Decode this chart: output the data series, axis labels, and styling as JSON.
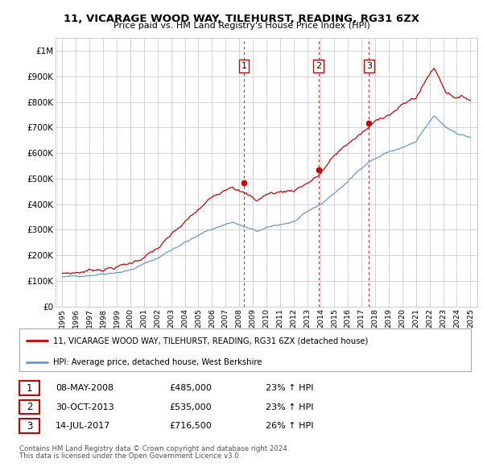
{
  "title": "11, VICARAGE WOOD WAY, TILEHURST, READING, RG31 6ZX",
  "subtitle": "Price paid vs. HM Land Registry's House Price Index (HPI)",
  "red_label": "11, VICARAGE WOOD WAY, TILEHURST, READING, RG31 6ZX (detached house)",
  "blue_label": "HPI: Average price, detached house, West Berkshire",
  "transactions": [
    {
      "num": 1,
      "date": "08-MAY-2008",
      "price": "£485,000",
      "pct": "23% ↑ HPI"
    },
    {
      "num": 2,
      "date": "30-OCT-2013",
      "price": "£535,000",
      "pct": "23% ↑ HPI"
    },
    {
      "num": 3,
      "date": "14-JUL-2017",
      "price": "£716,500",
      "pct": "26% ↑ HPI"
    }
  ],
  "footer1": "Contains HM Land Registry data © Crown copyright and database right 2024.",
  "footer2": "This data is licensed under the Open Government Licence v3.0.",
  "sale_dates": [
    2008.35,
    2013.83,
    2017.54
  ],
  "sale_prices": [
    485000,
    535000,
    716500
  ],
  "ylim": [
    0,
    1050000
  ],
  "xlim": [
    1994.5,
    2025.5
  ],
  "yticks": [
    0,
    100000,
    200000,
    300000,
    400000,
    500000,
    600000,
    700000,
    800000,
    900000,
    1000000
  ],
  "ytick_labels": [
    "£0",
    "£100K",
    "£200K",
    "£300K",
    "£400K",
    "£500K",
    "£600K",
    "£700K",
    "£800K",
    "£900K",
    "£1M"
  ],
  "xticks": [
    1995,
    1996,
    1997,
    1998,
    1999,
    2000,
    2001,
    2002,
    2003,
    2004,
    2005,
    2006,
    2007,
    2008,
    2009,
    2010,
    2011,
    2012,
    2013,
    2014,
    2015,
    2016,
    2017,
    2018,
    2019,
    2020,
    2021,
    2022,
    2023,
    2024,
    2025
  ],
  "red_color": "#cc0000",
  "blue_color": "#6699cc",
  "vline_color": "#cc0000",
  "grid_color": "#cccccc",
  "bg_color": "#ffffff",
  "num_box_color": "#cc0000"
}
